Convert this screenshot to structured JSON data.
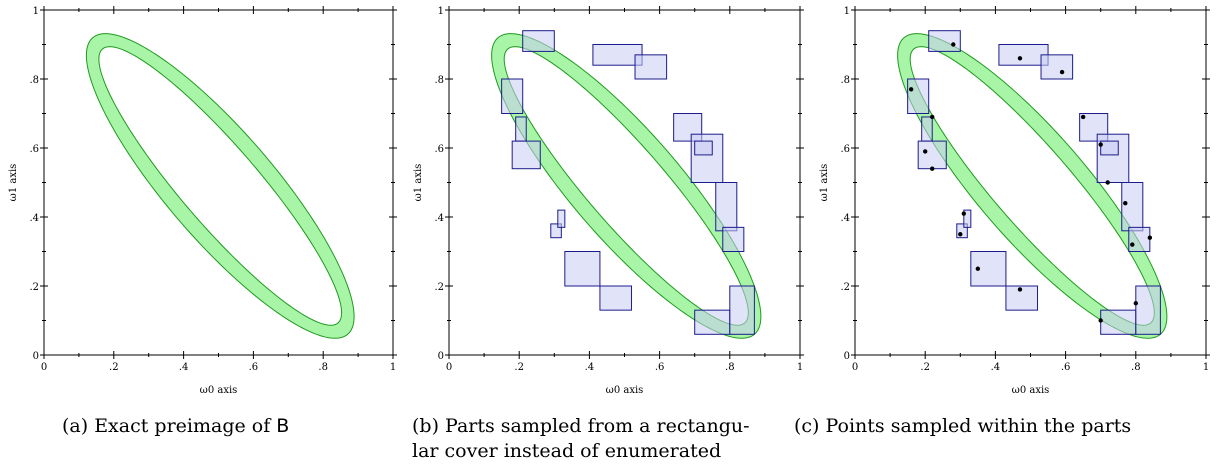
{
  "chart_data": [
    {
      "type": "region",
      "xlabel": "ω0 axis",
      "ylabel": "ω1 axis",
      "xlim": [
        0,
        1
      ],
      "ylim": [
        0,
        1
      ],
      "xticks": [
        "0",
        ".2",
        ".4",
        ".6",
        ".8",
        "1"
      ],
      "yticks": [
        "0",
        ".2",
        ".4",
        ".6",
        ".8",
        "1"
      ],
      "band": {
        "outer_vertex_a": [
          0.14,
          0.92
        ],
        "outer_vertex_b": [
          0.87,
          0.06
        ],
        "width": 0.043
      },
      "colors": {
        "band_fill": "#a8f5a8",
        "band_stroke": "#1e9a1e"
      },
      "caption_prefix": "(a) Exact preimage of ",
      "caption_symbol": "B",
      "caption_lines": []
    },
    {
      "type": "region",
      "xlabel": "ω0 axis",
      "ylabel": "ω1 axis",
      "xlim": [
        0,
        1
      ],
      "ylim": [
        0,
        1
      ],
      "xticks": [
        "0",
        ".2",
        ".4",
        ".6",
        ".8",
        "1"
      ],
      "yticks": [
        "0",
        ".2",
        ".4",
        ".6",
        ".8",
        "1"
      ],
      "colors": {
        "box_fill": "#c8ccf2",
        "box_stroke": "#1c1c8c"
      },
      "rectangles": [
        [
          0.21,
          0.3,
          0.88,
          0.94
        ],
        [
          0.41,
          0.55,
          0.84,
          0.9
        ],
        [
          0.53,
          0.62,
          0.8,
          0.87
        ],
        [
          0.15,
          0.21,
          0.7,
          0.8
        ],
        [
          0.19,
          0.22,
          0.62,
          0.69
        ],
        [
          0.18,
          0.26,
          0.54,
          0.62
        ],
        [
          0.64,
          0.72,
          0.62,
          0.7
        ],
        [
          0.69,
          0.78,
          0.5,
          0.64
        ],
        [
          0.7,
          0.75,
          0.58,
          0.62
        ],
        [
          0.29,
          0.32,
          0.34,
          0.38
        ],
        [
          0.31,
          0.33,
          0.37,
          0.42
        ],
        [
          0.76,
          0.82,
          0.36,
          0.5
        ],
        [
          0.78,
          0.84,
          0.3,
          0.37
        ],
        [
          0.33,
          0.43,
          0.2,
          0.3
        ],
        [
          0.43,
          0.52,
          0.13,
          0.2
        ],
        [
          0.7,
          0.8,
          0.06,
          0.13
        ],
        [
          0.8,
          0.87,
          0.06,
          0.2
        ]
      ],
      "caption_lines": [
        "(b) Parts sampled from a rectangu-",
        "lar cover instead of enumerated"
      ]
    },
    {
      "type": "region",
      "xlabel": "ω0 axis",
      "ylabel": "ω1 axis",
      "xlim": [
        0,
        1
      ],
      "ylim": [
        0,
        1
      ],
      "xticks": [
        "0",
        ".2",
        ".4",
        ".6",
        ".8",
        "1"
      ],
      "yticks": [
        "0",
        ".2",
        ".4",
        ".6",
        ".8",
        "1"
      ],
      "colors": {
        "point": "#000000"
      },
      "points": [
        [
          0.28,
          0.9
        ],
        [
          0.47,
          0.86
        ],
        [
          0.59,
          0.82
        ],
        [
          0.16,
          0.77
        ],
        [
          0.22,
          0.69
        ],
        [
          0.65,
          0.69
        ],
        [
          0.2,
          0.59
        ],
        [
          0.7,
          0.61
        ],
        [
          0.22,
          0.54
        ],
        [
          0.72,
          0.5
        ],
        [
          0.31,
          0.41
        ],
        [
          0.77,
          0.44
        ],
        [
          0.3,
          0.35
        ],
        [
          0.79,
          0.32
        ],
        [
          0.84,
          0.34
        ],
        [
          0.35,
          0.25
        ],
        [
          0.47,
          0.19
        ],
        [
          0.8,
          0.15
        ],
        [
          0.7,
          0.1
        ]
      ],
      "caption_lines": [
        "(c) Points sampled within the parts"
      ]
    }
  ]
}
